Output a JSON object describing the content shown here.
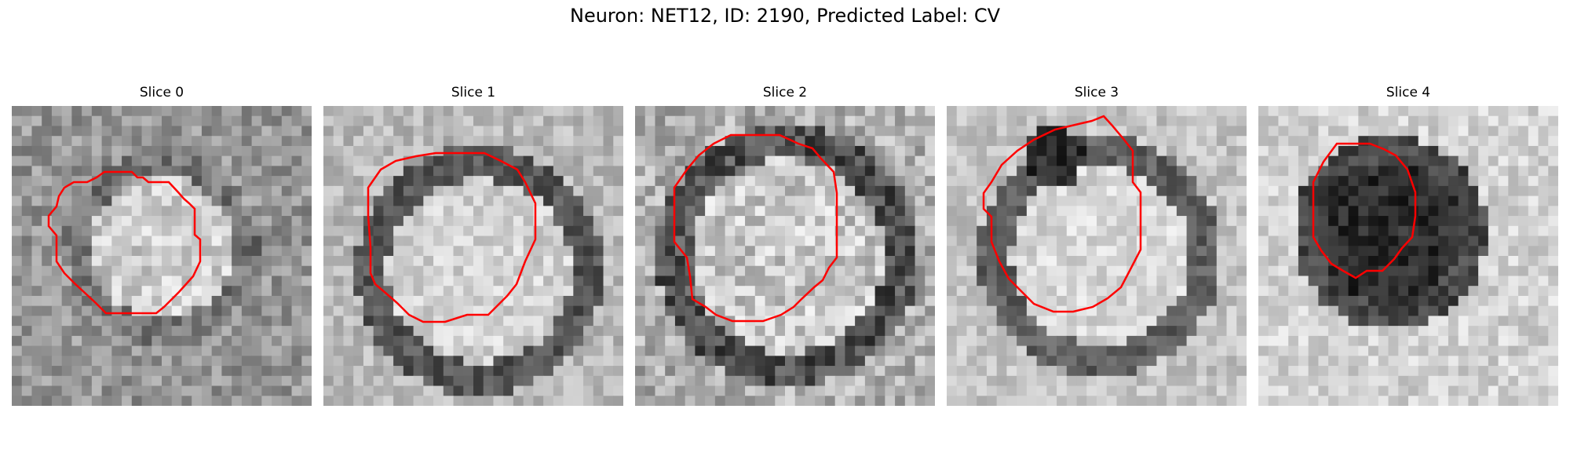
{
  "figure": {
    "title": "Neuron: NET12, ID: 2190, Predicted Label: CV"
  },
  "contour_color": "#ff0000",
  "colormap": "gray",
  "panels": [
    {
      "title": "Slice 0",
      "image_content": "grayscale microscopy patch, bright cell body at center surrounded by darker membrane",
      "contour_color": "#ff0000"
    },
    {
      "title": "Slice 1",
      "image_content": "grayscale microscopy patch, large bright round cell body with dark rim",
      "contour_color": "#ff0000"
    },
    {
      "title": "Slice 2",
      "image_content": "grayscale microscopy patch, textured round cell body with dark outer ring",
      "contour_color": "#ff0000"
    },
    {
      "title": "Slice 3",
      "image_content": "grayscale microscopy patch, round cell with dark blob at upper left",
      "contour_color": "#ff0000"
    },
    {
      "title": "Slice 4",
      "image_content": "grayscale microscopy patch, dark cell body on light background",
      "contour_color": "#ff0000"
    }
  ]
}
